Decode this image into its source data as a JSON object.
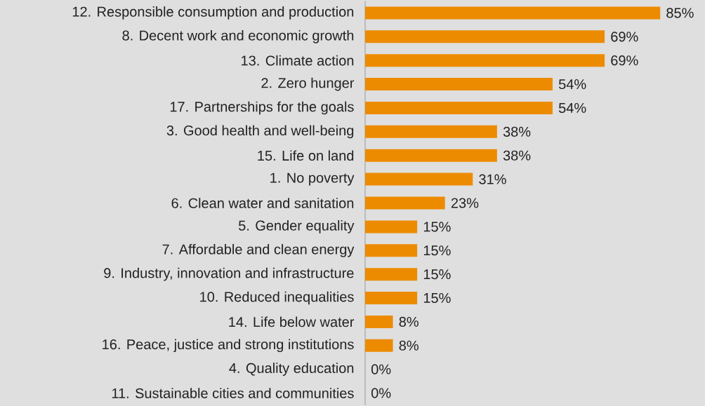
{
  "chart_data": {
    "type": "bar",
    "orientation": "horizontal",
    "color": "#ed8b00",
    "tick_labels": "y",
    "categories": [
      "12. Responsible consumption and production",
      "8. Decent work and economic growth",
      "13. Climate action",
      "2. Zero hunger",
      "17. Partnerships for the goals",
      "3. Good health and well-being",
      "15. Life on land",
      "1. No poverty",
      "6. Clean water and sanitation",
      "5. Gender equality",
      "7. Affordable and clean energy",
      "9. Industry, innovation and infrastructure",
      "10. Reduced inequalities",
      "14. Life below water",
      "16. Peace, justice and strong institutions",
      "4. Quality education",
      "11. Sustainable cities and communities"
    ],
    "values": [
      85,
      69,
      69,
      54,
      54,
      38,
      38,
      31,
      23,
      15,
      15,
      15,
      15,
      8,
      8,
      0,
      0
    ],
    "value_labels": [
      "85%",
      "69%",
      "69%",
      "54%",
      "54%",
      "38%",
      "38%",
      "31%",
      "23%",
      "15%",
      "15%",
      "15%",
      "15%",
      "8%",
      "8%",
      "0%",
      "0%"
    ]
  }
}
